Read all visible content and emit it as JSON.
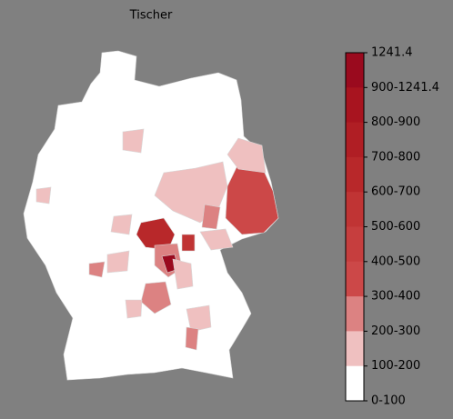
{
  "title": "Tischer",
  "legend": {
    "labels": [
      "1241.4",
      "900-1241.4",
      "800-900",
      "700-800",
      "600-700",
      "500-600",
      "400-500",
      "300-400",
      "200-300",
      "100-200",
      "0-100"
    ],
    "colors": [
      "#9a0a1e",
      "#a8141f",
      "#b01e24",
      "#b8282a",
      "#c03434",
      "#c63e3e",
      "#cc4848",
      "#dc8282",
      "#efc0c0",
      "#ffffff"
    ]
  }
}
